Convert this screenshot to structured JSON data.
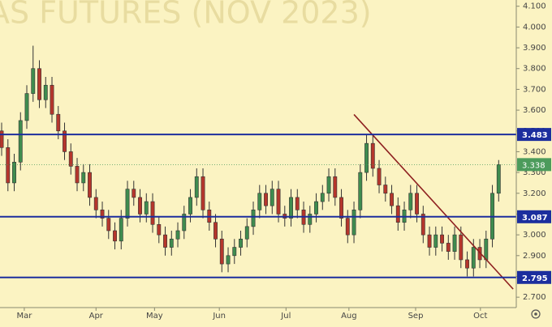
{
  "chart_data": {
    "type": "candlestick",
    "title": "AS FUTURES (NOV 2023)",
    "up_color": "#3f8c4f",
    "down_color": "#b5362c",
    "background": "#fbf3c2",
    "open": [
      3.5,
      3.42,
      3.25,
      3.35,
      3.55,
      3.68,
      3.8,
      3.65,
      3.72,
      3.58,
      3.5,
      3.4,
      3.33,
      3.25,
      3.3,
      3.18,
      3.12,
      3.08,
      3.02,
      2.97,
      3.08,
      3.22,
      3.18,
      3.1,
      3.16,
      3.05,
      3.0,
      2.94,
      2.98,
      3.02,
      3.1,
      3.18,
      3.28,
      3.12,
      3.06,
      2.98,
      2.86,
      2.9,
      2.94,
      2.98,
      3.04,
      3.12,
      3.2,
      3.14,
      3.22,
      3.1,
      3.08,
      3.18,
      3.12,
      3.05,
      3.1,
      3.16,
      3.2,
      3.28,
      3.18,
      3.08,
      3.0,
      3.12,
      3.3,
      3.44,
      3.32,
      3.24,
      3.2,
      3.14,
      3.06,
      3.12,
      3.2,
      3.1,
      3.0,
      2.94,
      3.0,
      2.96,
      2.92,
      3.0,
      2.88,
      2.84,
      2.94,
      2.88,
      2.98,
      3.2
    ],
    "high": [
      3.54,
      3.46,
      3.39,
      3.59,
      3.72,
      3.91,
      3.84,
      3.76,
      3.76,
      3.62,
      3.54,
      3.44,
      3.37,
      3.34,
      3.34,
      3.22,
      3.16,
      3.12,
      3.06,
      3.12,
      3.26,
      3.26,
      3.22,
      3.2,
      3.2,
      3.09,
      3.04,
      3.02,
      3.06,
      3.14,
      3.22,
      3.32,
      3.32,
      3.16,
      3.1,
      3.02,
      2.94,
      2.98,
      3.02,
      3.08,
      3.16,
      3.24,
      3.24,
      3.26,
      3.26,
      3.14,
      3.22,
      3.22,
      3.16,
      3.14,
      3.2,
      3.24,
      3.32,
      3.32,
      3.22,
      3.12,
      3.16,
      3.34,
      3.48,
      3.48,
      3.36,
      3.28,
      3.24,
      3.18,
      3.16,
      3.24,
      3.24,
      3.14,
      3.04,
      3.04,
      3.04,
      3.0,
      3.04,
      3.04,
      2.92,
      2.98,
      2.98,
      3.02,
      3.24,
      3.36
    ],
    "low": [
      3.38,
      3.21,
      3.21,
      3.31,
      3.51,
      3.64,
      3.61,
      3.61,
      3.54,
      3.46,
      3.36,
      3.29,
      3.21,
      3.21,
      3.14,
      3.08,
      3.04,
      2.98,
      2.93,
      2.93,
      3.04,
      3.14,
      3.06,
      3.06,
      3.01,
      2.96,
      2.9,
      2.9,
      2.94,
      2.98,
      3.06,
      3.14,
      3.08,
      3.02,
      2.94,
      2.82,
      2.82,
      2.86,
      2.9,
      2.94,
      3.0,
      3.08,
      3.1,
      3.1,
      3.06,
      3.04,
      3.04,
      3.08,
      3.01,
      3.01,
      3.06,
      3.12,
      3.16,
      3.14,
      3.04,
      2.96,
      2.96,
      3.08,
      3.26,
      3.28,
      3.2,
      3.16,
      3.1,
      3.02,
      3.02,
      3.08,
      3.06,
      2.96,
      2.9,
      2.9,
      2.92,
      2.88,
      2.88,
      2.84,
      2.8,
      2.8,
      2.84,
      2.84,
      2.94,
      3.16
    ],
    "close": [
      3.42,
      3.25,
      3.35,
      3.55,
      3.68,
      3.8,
      3.65,
      3.72,
      3.58,
      3.5,
      3.4,
      3.33,
      3.25,
      3.3,
      3.18,
      3.12,
      3.08,
      3.02,
      2.97,
      3.08,
      3.22,
      3.18,
      3.1,
      3.16,
      3.05,
      3.0,
      2.94,
      2.98,
      3.02,
      3.1,
      3.18,
      3.28,
      3.12,
      3.06,
      2.98,
      2.86,
      2.9,
      2.94,
      2.98,
      3.04,
      3.12,
      3.2,
      3.14,
      3.22,
      3.1,
      3.08,
      3.18,
      3.12,
      3.05,
      3.1,
      3.16,
      3.2,
      3.28,
      3.18,
      3.08,
      3.0,
      3.12,
      3.3,
      3.44,
      3.32,
      3.24,
      3.2,
      3.14,
      3.06,
      3.12,
      3.2,
      3.1,
      3.0,
      2.94,
      3.0,
      2.96,
      2.92,
      3.0,
      2.88,
      2.84,
      2.94,
      2.88,
      2.98,
      3.2,
      3.338
    ],
    "xlim": [
      -0.26,
      81.8
    ],
    "xticks": [
      {
        "value": 3.6,
        "label": "Mar"
      },
      {
        "value": 15,
        "label": "Apr"
      },
      {
        "value": 24.3,
        "label": "May"
      },
      {
        "value": 34.6,
        "label": "Jun"
      },
      {
        "value": 45.2,
        "label": "Jul"
      },
      {
        "value": 55.2,
        "label": "Aug"
      },
      {
        "value": 65.8,
        "label": "Sep"
      },
      {
        "value": 76.1,
        "label": "Oct"
      }
    ],
    "ylim": [
      2.65,
      4.13
    ],
    "yticks": [
      {
        "value": 2.7,
        "label": "2.700"
      },
      {
        "value": 2.8,
        "label": "2.800"
      },
      {
        "value": 2.9,
        "label": "2.900"
      },
      {
        "value": 3.0,
        "label": "3.000"
      },
      {
        "value": 3.1,
        "label": "3.100"
      },
      {
        "value": 3.2,
        "label": "3.200"
      },
      {
        "value": 3.3,
        "label": "3.300"
      },
      {
        "value": 3.4,
        "label": "3.400"
      },
      {
        "value": 3.5,
        "label": "3.500"
      },
      {
        "value": 3.6,
        "label": "3.600"
      },
      {
        "value": 3.7,
        "label": "3.700"
      },
      {
        "value": 3.8,
        "label": "3.800"
      },
      {
        "value": 3.9,
        "label": "3.900"
      },
      {
        "value": 4.0,
        "label": "4.000"
      },
      {
        "value": 4.1,
        "label": "4.100"
      }
    ],
    "levels": [
      3.483,
      3.087,
      2.795
    ],
    "level_color": "#1c2e9e",
    "last_price": 3.338,
    "last_color": "#4c9b5c",
    "trendline": {
      "from": [
        56.0,
        3.579
      ],
      "to": [
        81.3,
        2.739
      ],
      "color": "#8e2020"
    }
  }
}
